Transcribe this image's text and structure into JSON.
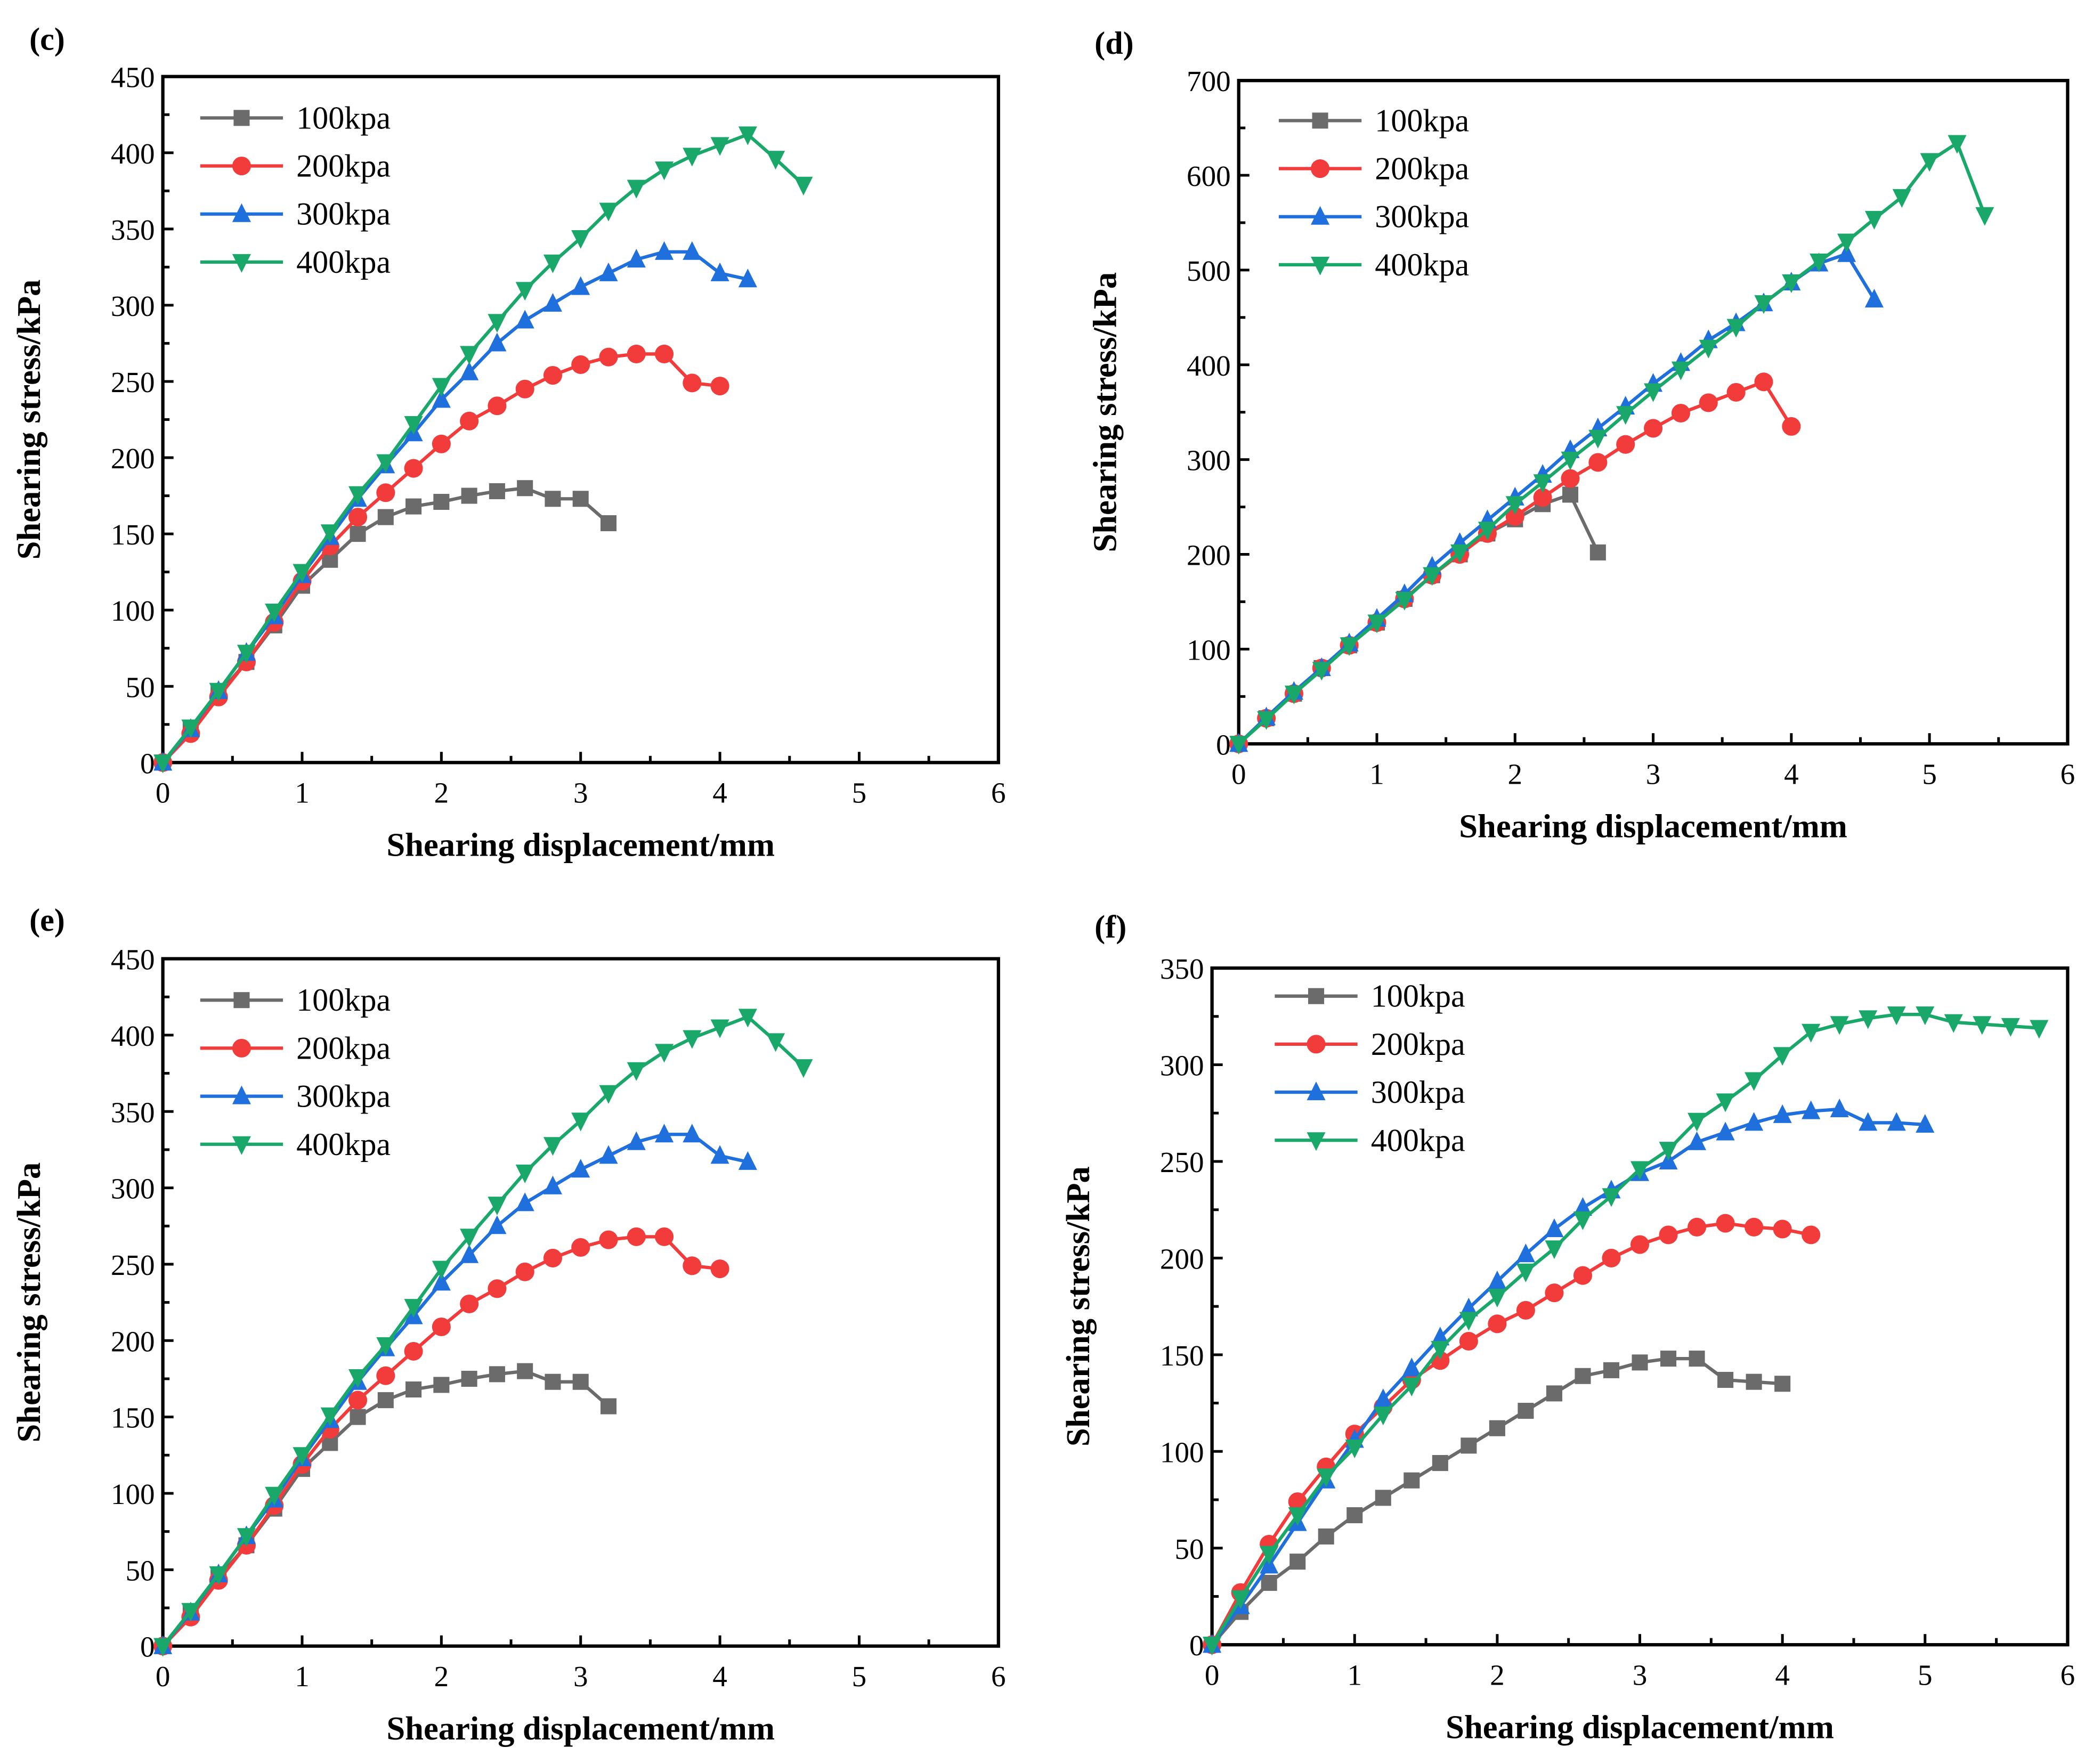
{
  "colors": {
    "100kpa": "#6b6b6b",
    "200kpa": "#f23c3c",
    "300kpa": "#1f6fdc",
    "400kpa": "#1aa86a"
  },
  "chart_data": [
    {
      "panel": "(c)",
      "type": "line",
      "xlabel": "Shearing displacement/mm",
      "ylabel": "Shearing stress/kPa",
      "xlim": [
        0,
        6
      ],
      "ylim": [
        0,
        450
      ],
      "xticks": [
        0,
        1,
        2,
        3,
        4,
        5,
        6
      ],
      "yticks": [
        0,
        50,
        100,
        150,
        200,
        250,
        300,
        350,
        400,
        450
      ],
      "legend": "top-left",
      "grid": false,
      "series": [
        {
          "name": "100kpa",
          "marker": "square",
          "x0": 0,
          "dx": 0.2,
          "values": [
            0,
            22,
            45,
            66,
            90,
            116,
            133,
            150,
            161,
            168,
            171,
            175,
            178,
            180,
            173,
            173,
            157
          ]
        },
        {
          "name": "200kpa",
          "marker": "circle",
          "x0": 0,
          "dx": 0.2,
          "values": [
            0,
            19,
            43,
            66,
            92,
            119,
            142,
            161,
            177,
            193,
            209,
            224,
            234,
            245,
            254,
            261,
            266,
            268,
            268,
            249,
            247
          ]
        },
        {
          "name": "300kpa",
          "marker": "triangle-up",
          "x0": 0,
          "dx": 0.2,
          "values": [
            0,
            22,
            47,
            72,
            96,
            123,
            148,
            173,
            195,
            216,
            238,
            256,
            275,
            290,
            301,
            312,
            321,
            330,
            335,
            335,
            321,
            317
          ]
        },
        {
          "name": "400kpa",
          "marker": "triangle-down",
          "x0": 0,
          "dx": 0.2,
          "values": [
            0,
            23,
            47,
            72,
            99,
            125,
            151,
            176,
            197,
            222,
            247,
            268,
            289,
            310,
            328,
            344,
            362,
            377,
            389,
            398,
            405,
            412,
            396,
            379
          ]
        }
      ]
    },
    {
      "panel": "(d)",
      "type": "line",
      "xlabel": "Shearing displacement/mm",
      "ylabel": "Shearing stress/kPa",
      "xlim": [
        0,
        6
      ],
      "ylim": [
        0,
        700
      ],
      "xticks": [
        0,
        1,
        2,
        3,
        4,
        5,
        6
      ],
      "yticks": [
        0,
        100,
        200,
        300,
        400,
        500,
        600,
        700
      ],
      "legend": "top-left",
      "grid": false,
      "series": [
        {
          "name": "100kpa",
          "marker": "square",
          "x0": 0,
          "dx": 0.2,
          "values": [
            0,
            27,
            53,
            80,
            104,
            128,
            153,
            178,
            200,
            222,
            237,
            253,
            263,
            202
          ]
        },
        {
          "name": "200kpa",
          "marker": "circle",
          "x0": 0,
          "dx": 0.2,
          "values": [
            0,
            27,
            53,
            80,
            104,
            128,
            153,
            178,
            200,
            222,
            240,
            260,
            280,
            297,
            316,
            333,
            349,
            360,
            371,
            382,
            335
          ]
        },
        {
          "name": "300kpa",
          "marker": "triangle-up",
          "x0": 0,
          "dx": 0.2,
          "values": [
            0,
            28,
            55,
            80,
            106,
            132,
            158,
            187,
            212,
            236,
            260,
            284,
            310,
            333,
            356,
            380,
            402,
            426,
            444,
            465,
            487,
            507,
            517,
            469
          ]
        },
        {
          "name": "400kpa",
          "marker": "triangle-down",
          "x0": 0,
          "dx": 0.2,
          "values": [
            0,
            26,
            53,
            78,
            104,
            128,
            152,
            178,
            202,
            226,
            253,
            276,
            300,
            323,
            348,
            372,
            395,
            418,
            440,
            465,
            487,
            509,
            530,
            554,
            577,
            615,
            634,
            558
          ]
        }
      ]
    },
    {
      "panel": "(e)",
      "type": "line",
      "xlabel": "Shearing displacement/mm",
      "ylabel": "Shearing stress/kPa",
      "xlim": [
        0,
        6
      ],
      "ylim": [
        0,
        450
      ],
      "xticks": [
        0,
        1,
        2,
        3,
        4,
        5,
        6
      ],
      "yticks": [
        0,
        50,
        100,
        150,
        200,
        250,
        300,
        350,
        400,
        450
      ],
      "legend": "top-left",
      "grid": false,
      "series": [
        {
          "name": "100kpa",
          "marker": "square",
          "x0": 0,
          "dx": 0.2,
          "values": [
            0,
            22,
            45,
            66,
            90,
            116,
            133,
            150,
            161,
            168,
            171,
            175,
            178,
            180,
            173,
            173,
            157
          ]
        },
        {
          "name": "200kpa",
          "marker": "circle",
          "x0": 0,
          "dx": 0.2,
          "values": [
            0,
            19,
            43,
            66,
            92,
            119,
            142,
            161,
            177,
            193,
            209,
            224,
            234,
            245,
            254,
            261,
            266,
            268,
            268,
            249,
            247
          ]
        },
        {
          "name": "300kpa",
          "marker": "triangle-up",
          "x0": 0,
          "dx": 0.2,
          "values": [
            0,
            22,
            47,
            72,
            96,
            123,
            148,
            173,
            195,
            216,
            238,
            256,
            275,
            290,
            301,
            312,
            321,
            330,
            335,
            335,
            321,
            317
          ]
        },
        {
          "name": "400kpa",
          "marker": "triangle-down",
          "x0": 0,
          "dx": 0.2,
          "values": [
            0,
            23,
            47,
            72,
            99,
            125,
            151,
            176,
            197,
            222,
            247,
            268,
            289,
            310,
            328,
            344,
            362,
            377,
            389,
            398,
            405,
            412,
            396,
            379
          ]
        }
      ]
    },
    {
      "panel": "(f)",
      "type": "line",
      "xlabel": "Shearing displacement/mm",
      "ylabel": "Shearing stress/kPa",
      "xlim": [
        0,
        6
      ],
      "ylim": [
        0,
        350
      ],
      "xticks": [
        0,
        1,
        2,
        3,
        4,
        5,
        6
      ],
      "yticks": [
        0,
        50,
        100,
        150,
        200,
        250,
        300,
        350
      ],
      "legend": "top-left",
      "grid": false,
      "series": [
        {
          "name": "100kpa",
          "marker": "square",
          "x0": 0,
          "dx": 0.2,
          "values": [
            0,
            17,
            32,
            43,
            56,
            67,
            76,
            85,
            94,
            103,
            112,
            121,
            130,
            139,
            142,
            146,
            148,
            148,
            137,
            136,
            135
          ]
        },
        {
          "name": "200kpa",
          "marker": "circle",
          "x0": 0,
          "dx": 0.2,
          "values": [
            0,
            27,
            52,
            74,
            92,
            109,
            123,
            137,
            147,
            157,
            166,
            173,
            182,
            191,
            200,
            207,
            212,
            216,
            218,
            216,
            215,
            212
          ]
        },
        {
          "name": "300kpa",
          "marker": "triangle-up",
          "x0": 0,
          "dx": 0.2,
          "values": [
            0,
            20,
            41,
            63,
            85,
            106,
            127,
            143,
            159,
            174,
            188,
            202,
            215,
            226,
            235,
            244,
            250,
            260,
            265,
            270,
            274,
            276,
            277,
            270,
            270,
            269
          ]
        },
        {
          "name": "400kpa",
          "marker": "triangle-down",
          "x0": 0,
          "dx": 0.2,
          "values": [
            0,
            24,
            47,
            67,
            87,
            102,
            119,
            134,
            153,
            168,
            180,
            193,
            205,
            220,
            232,
            246,
            256,
            271,
            281,
            292,
            305,
            317,
            321,
            324,
            326,
            326,
            322,
            321,
            320,
            319
          ]
        }
      ]
    }
  ]
}
